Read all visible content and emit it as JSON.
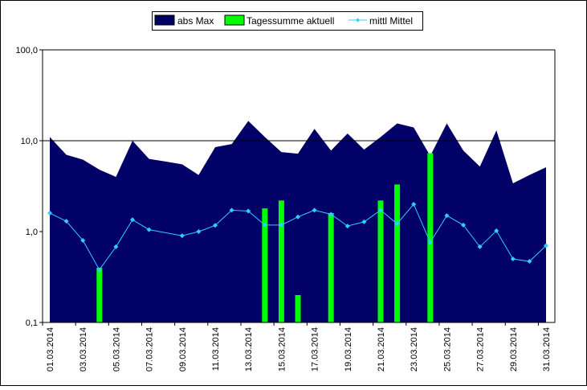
{
  "chart_data": {
    "type": "area",
    "y_scale": "log",
    "ylim": [
      0.1,
      100
    ],
    "grid": "horizontal lines at 10 only",
    "legend_position": "top",
    "y_ticks": [
      "0,1",
      "1,0",
      "10,0",
      "100,0"
    ],
    "x_tick_labels": [
      "01.03.2014",
      "03.03.2014",
      "05.03.2014",
      "07.03.2014",
      "09.03.2014",
      "11.03.2014",
      "13.03.2014",
      "15.03.2014",
      "17.03.2014",
      "19.03.2014",
      "21.03.2014",
      "23.03.2014",
      "25.03.2014",
      "27.03.2014",
      "29.03.2014",
      "31.03.2014"
    ],
    "days": [
      1,
      2,
      3,
      4,
      5,
      6,
      7,
      8,
      9,
      10,
      11,
      12,
      13,
      14,
      15,
      16,
      17,
      18,
      19,
      20,
      21,
      22,
      23,
      24,
      25,
      26,
      27,
      28,
      29,
      30,
      31
    ],
    "series": [
      {
        "name": "abs Max",
        "type": "area",
        "color": "#000066",
        "values": [
          11.0,
          7.0,
          6.2,
          4.8,
          4.0,
          10.0,
          6.3,
          5.9,
          5.5,
          4.2,
          8.5,
          9.2,
          16.5,
          11.0,
          7.5,
          7.2,
          13.5,
          7.8,
          12.0,
          8.0,
          11.0,
          15.5,
          14.0,
          6.8,
          15.5,
          7.8,
          5.2,
          13.0,
          3.4,
          4.2,
          5.1
        ]
      },
      {
        "name": "Tagessumme aktuell",
        "type": "bar",
        "color": "#00ff00",
        "values": [
          null,
          null,
          null,
          0.4,
          null,
          null,
          null,
          null,
          null,
          null,
          null,
          null,
          null,
          1.8,
          2.2,
          0.2,
          null,
          1.6,
          null,
          null,
          2.2,
          3.3,
          null,
          7.3,
          null,
          null,
          null,
          null,
          null,
          null,
          null
        ]
      },
      {
        "name": "mittl Mittel",
        "type": "line",
        "color": "#33ccff",
        "values": [
          1.6,
          1.3,
          0.8,
          0.38,
          0.68,
          1.35,
          1.05,
          null,
          0.9,
          1.0,
          1.17,
          1.72,
          1.68,
          1.18,
          1.18,
          1.45,
          1.72,
          1.55,
          1.15,
          1.28,
          1.72,
          1.22,
          2.0,
          0.76,
          1.5,
          1.18,
          0.68,
          1.02,
          0.5,
          0.47,
          0.7
        ]
      }
    ]
  }
}
